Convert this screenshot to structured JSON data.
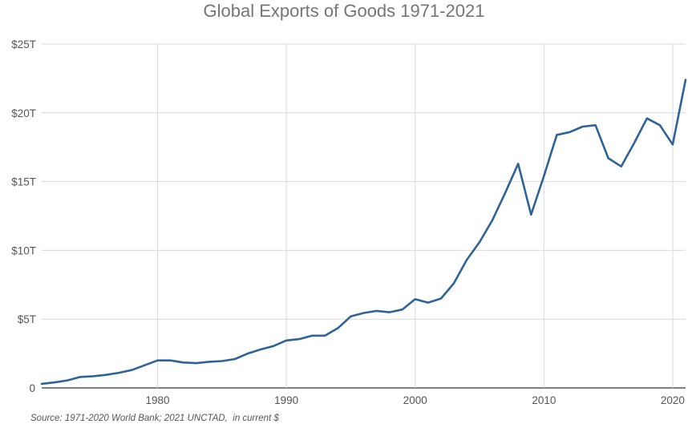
{
  "chart_data": {
    "type": "line",
    "title": "Global Exports of Goods 1971-2021",
    "xlabel": "",
    "ylabel": "",
    "xlim": [
      1971,
      2021
    ],
    "ylim": [
      0,
      25
    ],
    "x_ticks": [
      1980,
      1990,
      2000,
      2010,
      2020
    ],
    "x_tick_labels": [
      "1980",
      "1990",
      "2000",
      "2010",
      "2020"
    ],
    "y_ticks": [
      0,
      5,
      10,
      15,
      20,
      25
    ],
    "y_tick_labels": [
      "0",
      "$5T",
      "$10T",
      "$15T",
      "$20T",
      "$25T"
    ],
    "grid": true,
    "series_color": "#2e6399",
    "grid_color": "#d9d9d9",
    "series": [
      {
        "unit": "trillion US$",
        "x": [
          1971,
          1972,
          1973,
          1974,
          1975,
          1976,
          1977,
          1978,
          1979,
          1980,
          1981,
          1982,
          1983,
          1984,
          1985,
          1986,
          1987,
          1988,
          1989,
          1990,
          1991,
          1992,
          1993,
          1994,
          1995,
          1996,
          1997,
          1998,
          1999,
          2000,
          2001,
          2002,
          2003,
          2004,
          2005,
          2006,
          2007,
          2008,
          2009,
          2010,
          2011,
          2012,
          2013,
          2014,
          2015,
          2016,
          2017,
          2018,
          2019,
          2020,
          2021
        ],
        "values": [
          0.3,
          0.4,
          0.55,
          0.8,
          0.85,
          0.95,
          1.1,
          1.3,
          1.65,
          2.0,
          2.0,
          1.85,
          1.8,
          1.9,
          1.95,
          2.1,
          2.5,
          2.8,
          3.05,
          3.45,
          3.55,
          3.8,
          3.8,
          4.35,
          5.2,
          5.45,
          5.6,
          5.5,
          5.7,
          6.45,
          6.2,
          6.5,
          7.6,
          9.3,
          10.6,
          12.2,
          14.2,
          16.3,
          12.6,
          15.4,
          18.4,
          18.6,
          19.0,
          19.1,
          16.7,
          16.1,
          17.8,
          19.6,
          19.1,
          17.7,
          22.4
        ]
      }
    ],
    "source_note": "Source: 1971-2020 World Bank; 2021 UNCTAD,  in current $"
  }
}
